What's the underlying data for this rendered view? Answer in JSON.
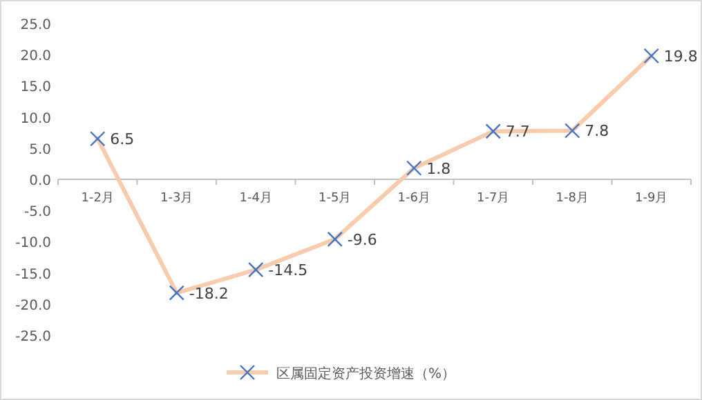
{
  "chart_data": {
    "type": "line",
    "categories": [
      "1-2月",
      "1-3月",
      "1-4月",
      "1-5月",
      "1-6月",
      "1-7月",
      "1-8月",
      "1-9月"
    ],
    "series": [
      {
        "name": "区属固定资产投资增速（%）",
        "color": "#f8cbad",
        "values": [
          6.5,
          -18.2,
          -14.5,
          -9.6,
          1.8,
          7.7,
          7.8,
          19.8
        ]
      }
    ],
    "ylim": [
      -25,
      25
    ],
    "yticks": [
      {
        "value": -25,
        "label": "-25.0"
      },
      {
        "value": -20,
        "label": "-20.0"
      },
      {
        "value": -15,
        "label": "-15.0"
      },
      {
        "value": -10,
        "label": "-10.0"
      },
      {
        "value": -5,
        "label": "-5.0"
      },
      {
        "value": 0,
        "label": "0.0"
      },
      {
        "value": 5,
        "label": "5.0"
      },
      {
        "value": 10,
        "label": "10.0"
      },
      {
        "value": 15,
        "label": "15.0"
      },
      {
        "value": 20,
        "label": "20.0"
      },
      {
        "value": 25,
        "label": "25.0"
      }
    ],
    "data_labels": true,
    "marker": "cross",
    "legend": "bottom",
    "grid": false
  }
}
